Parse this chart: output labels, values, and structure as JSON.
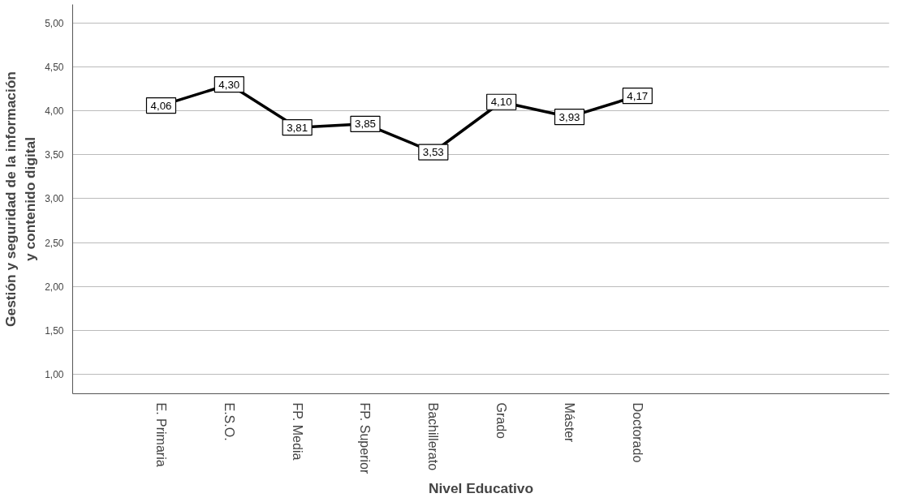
{
  "chart_data": {
    "type": "line",
    "xlabel": "Nivel Educativo",
    "ylabel": "Gestión y seguridad de la información\ny contenido digital",
    "categories": [
      "E. Primaria",
      "E.S.O.",
      "FP. Media",
      "FP. Superior",
      "Bachillerato",
      "Grado",
      "Máster",
      "Doctorado"
    ],
    "series": [
      {
        "color": "#000000",
        "values": [
          4.06,
          4.3,
          3.81,
          3.85,
          3.53,
          4.1,
          3.93,
          4.17
        ],
        "value_labels": [
          "4,06",
          "4,30",
          "3,81",
          "3,85",
          "3,53",
          "4,10",
          "3,93",
          "4,17"
        ]
      }
    ],
    "ylim": [
      0.78,
      5.21
    ],
    "yticks": [
      {
        "value": 1,
        "label": "1,00"
      },
      {
        "value": 1.5,
        "label": "1,50"
      },
      {
        "value": 2,
        "label": "2,00"
      },
      {
        "value": 2.5,
        "label": "2,50"
      },
      {
        "value": 3,
        "label": "3,00"
      },
      {
        "value": 3.5,
        "label": "3,50"
      },
      {
        "value": 4,
        "label": "4,00"
      },
      {
        "value": 4.5,
        "label": "4,50"
      },
      {
        "value": 5,
        "label": "5,00"
      }
    ],
    "grid": "y",
    "line_style": "solid",
    "marker": "square"
  }
}
